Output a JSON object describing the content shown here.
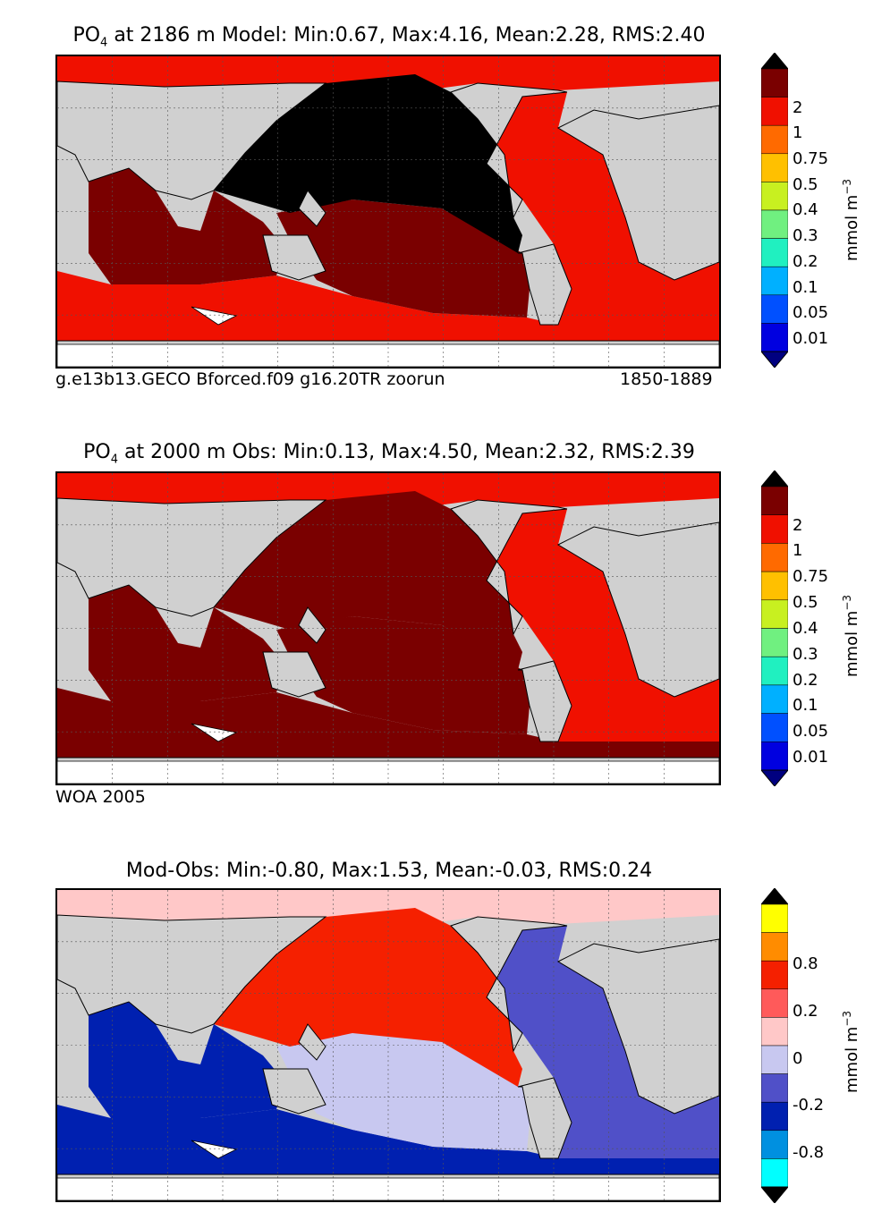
{
  "panels": [
    {
      "title_prefix": "PO",
      "title_sub": "4",
      "title_rest": " at 2186 m Model: Min:0.67, Max:4.16, Mean:2.28, RMS:2.40",
      "footer_left": "g.e13b13.GECO Bforced.f09 g16.20TR zoorun",
      "footer_right": "1850-1889",
      "colorbar": {
        "units": "mmol m",
        "units_sup": "−3",
        "ticks": [
          "2",
          "1",
          "0.75",
          "0.5",
          "0.4",
          "0.3",
          "0.2",
          "0.1",
          "0.05",
          "0.01"
        ],
        "colors": [
          "#000000",
          "#7a0000",
          "#f01000",
          "#ff6a00",
          "#ffc000",
          "#c8f020",
          "#70f080",
          "#20f0c0",
          "#00b0ff",
          "#0050ff",
          "#0000e0",
          "#000080"
        ]
      },
      "regions": {
        "arctic": "#f01000",
        "atlantic": "#f01000",
        "north_pacific": "#000000",
        "south_pacific": "#7a0000",
        "indian": "#7a0000",
        "southern": "#f01000"
      }
    },
    {
      "title_prefix": "PO",
      "title_sub": "4",
      "title_rest": " at 2000 m Obs: Min:0.13, Max:4.50, Mean:2.32, RMS:2.39",
      "footer_left": "WOA 2005",
      "footer_right": "",
      "colorbar": {
        "units": "mmol m",
        "units_sup": "−3",
        "ticks": [
          "2",
          "1",
          "0.75",
          "0.5",
          "0.4",
          "0.3",
          "0.2",
          "0.1",
          "0.05",
          "0.01"
        ],
        "colors": [
          "#000000",
          "#7a0000",
          "#f01000",
          "#ff6a00",
          "#ffc000",
          "#c8f020",
          "#70f080",
          "#20f0c0",
          "#00b0ff",
          "#0050ff",
          "#0000e0",
          "#000080"
        ]
      },
      "regions": {
        "arctic": "#f01000",
        "atlantic": "#f01000",
        "north_pacific": "#7a0000",
        "south_pacific": "#7a0000",
        "indian": "#7a0000",
        "southern": "#7a0000"
      }
    },
    {
      "title_prefix": "",
      "title_sub": "",
      "title_rest": "Mod-Obs: Min:-0.80, Max:1.53, Mean:-0.03, RMS:0.24",
      "footer_left": "",
      "footer_right": "",
      "colorbar": {
        "units": "mmol m",
        "units_sup": "−3",
        "ticks": [
          "0.8",
          "0.2",
          "0",
          "-0.2",
          "-0.8"
        ],
        "colors": [
          "#000000",
          "#ffff00",
          "#ff8c00",
          "#f52000",
          "#ff5a5a",
          "#ffc8c8",
          "#c8c8f0",
          "#5050c8",
          "#0020b0",
          "#0090e0",
          "#00ffff",
          "#000000"
        ]
      },
      "regions": {
        "arctic": "#ffc8c8",
        "atlantic": "#5050c8",
        "north_pacific": "#f52000",
        "south_pacific": "#c8c8f0",
        "indian": "#0020b0",
        "southern": "#0020b0"
      }
    }
  ]
}
